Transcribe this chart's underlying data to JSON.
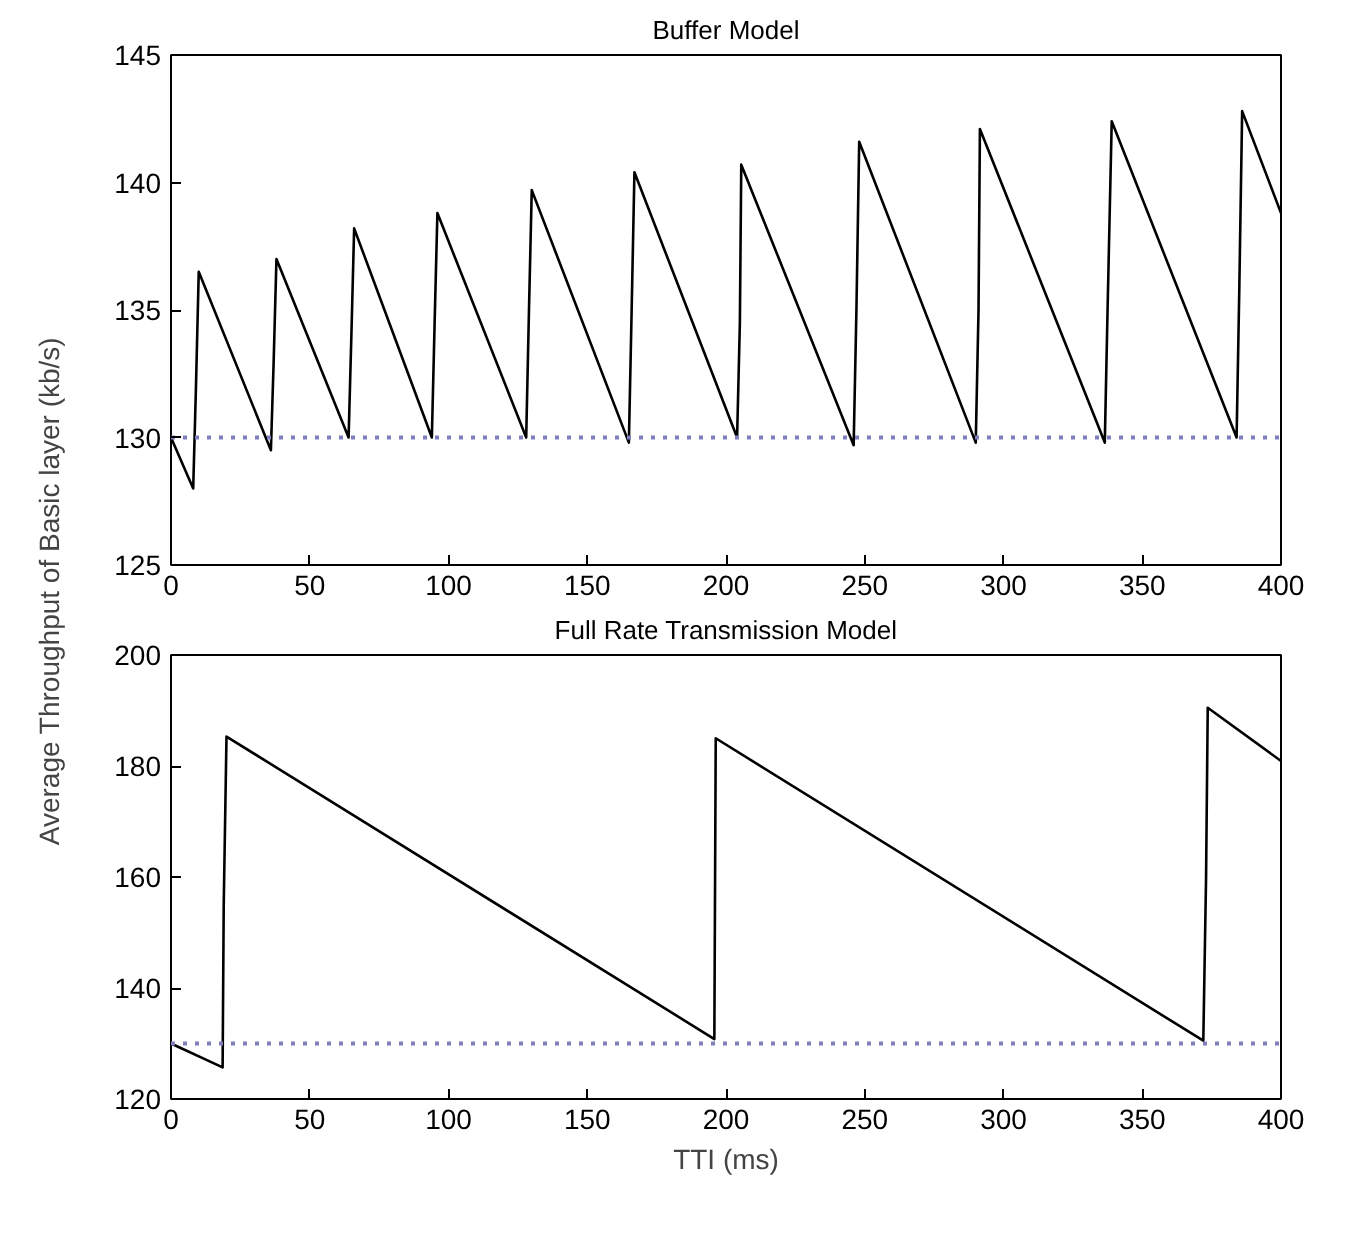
{
  "chart_data": [
    {
      "type": "line",
      "title": "Buffer Model",
      "ylabel": "Average Throughput of Basic layer (kb/s)",
      "xlim": [
        0,
        400
      ],
      "ylim": [
        125,
        145
      ],
      "xticks": [
        0,
        50,
        100,
        150,
        200,
        250,
        300,
        350,
        400
      ],
      "yticks": [
        125,
        130,
        135,
        140,
        145
      ],
      "grid": false,
      "series": [
        {
          "color": "#000000",
          "x": [
            0,
            8,
            9,
            10,
            36,
            37,
            38,
            64,
            65,
            66,
            94,
            95,
            96,
            128,
            129,
            130,
            165,
            166,
            167,
            204,
            205,
            205.5,
            246,
            247,
            248,
            290,
            291,
            291.5,
            336.5,
            337.5,
            339,
            384,
            385,
            386,
            400
          ],
          "values": [
            130,
            128,
            132,
            136.5,
            129.5,
            133,
            137,
            130,
            134,
            138.2,
            130,
            134.5,
            138.8,
            130,
            135,
            139.7,
            129.8,
            135,
            140.4,
            130,
            134.5,
            140.7,
            129.7,
            135,
            141.6,
            129.8,
            135,
            142.1,
            129.8,
            135,
            142.4,
            130,
            136,
            142.8,
            138.8
          ]
        },
        {
          "color": "#7f7fbf",
          "line_style": "dotted",
          "x": [
            0,
            400
          ],
          "values": [
            130,
            130
          ]
        }
      ]
    },
    {
      "type": "line",
      "title": "Full Rate Transmission Model",
      "xlabel": "TTI (ms)",
      "xlim": [
        0,
        400
      ],
      "ylim": [
        120,
        200
      ],
      "xticks": [
        0,
        50,
        100,
        150,
        200,
        250,
        300,
        350,
        400
      ],
      "yticks": [
        120,
        140,
        160,
        180,
        200
      ],
      "grid": false,
      "series": [
        {
          "color": "#000000",
          "x": [
            0,
            18.6,
            19,
            20,
            195.8,
            196.3,
            372,
            373,
            373.6,
            400
          ],
          "values": [
            130,
            125.7,
            155,
            185.3,
            130.8,
            185,
            130.5,
            160,
            190.5,
            180.9
          ]
        },
        {
          "color": "#7f7fbf",
          "line_style": "dotted",
          "x": [
            0,
            400
          ],
          "values": [
            130,
            130
          ]
        }
      ]
    }
  ]
}
